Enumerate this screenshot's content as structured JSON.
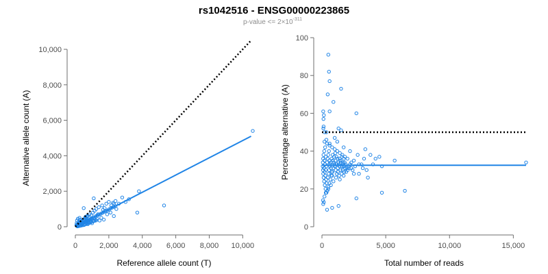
{
  "figure": {
    "title": "rs1042516 - ENSG00000223865",
    "subtitle": {
      "prefix": "p-value <= 2×10",
      "exponent": "-311"
    }
  },
  "colors": {
    "points": "#1f84e6",
    "fit_line": "#1f84e6",
    "reference_line": "#000000"
  },
  "chart_data": [
    {
      "id": "left",
      "type": "scatter",
      "xlabel": "Reference allele count (T)",
      "ylabel": "Alternative allele count (A)",
      "xlim": [
        0,
        10600
      ],
      "ylim": [
        0,
        10000
      ],
      "xticks": [
        0,
        2000,
        4000,
        6000,
        8000,
        10000
      ],
      "xtick_labels": [
        "0",
        "2,000",
        "4,000",
        "6,000",
        "8,000",
        "10,000"
      ],
      "yticks": [
        0,
        2000,
        4000,
        6000,
        8000,
        10000
      ],
      "ytick_labels": [
        "0",
        "2,000",
        "4,000",
        "6,000",
        "8,000",
        "10,000"
      ],
      "reference_line": {
        "style": "dotted",
        "from": [
          0,
          0
        ],
        "to": [
          10500,
          10500
        ]
      },
      "fit_line": {
        "from": [
          0,
          0
        ],
        "to": [
          10500,
          5100
        ]
      },
      "points": [
        [
          100,
          40
        ],
        [
          120,
          60
        ],
        [
          150,
          80
        ],
        [
          170,
          90
        ],
        [
          200,
          100
        ],
        [
          230,
          120
        ],
        [
          260,
          130
        ],
        [
          300,
          150
        ],
        [
          330,
          160
        ],
        [
          360,
          170
        ],
        [
          400,
          190
        ],
        [
          430,
          200
        ],
        [
          460,
          230
        ],
        [
          500,
          240
        ],
        [
          550,
          260
        ],
        [
          600,
          280
        ],
        [
          650,
          300
        ],
        [
          700,
          330
        ],
        [
          750,
          350
        ],
        [
          800,
          380
        ],
        [
          850,
          400
        ],
        [
          900,
          430
        ],
        [
          950,
          450
        ],
        [
          1000,
          480
        ],
        [
          1100,
          530
        ],
        [
          1200,
          580
        ],
        [
          1300,
          630
        ],
        [
          1400,
          680
        ],
        [
          1500,
          720
        ],
        [
          1600,
          770
        ],
        [
          1700,
          830
        ],
        [
          1800,
          870
        ],
        [
          1900,
          920
        ],
        [
          2000,
          970
        ],
        [
          2100,
          1030
        ],
        [
          2200,
          1080
        ],
        [
          2300,
          1120
        ],
        [
          2400,
          1160
        ],
        [
          80,
          200
        ],
        [
          100,
          350
        ],
        [
          150,
          450
        ],
        [
          200,
          250
        ],
        [
          250,
          500
        ],
        [
          300,
          400
        ],
        [
          350,
          300
        ],
        [
          420,
          150
        ],
        [
          500,
          420
        ],
        [
          520,
          100
        ],
        [
          600,
          550
        ],
        [
          650,
          200
        ],
        [
          700,
          600
        ],
        [
          750,
          150
        ],
        [
          800,
          250
        ],
        [
          850,
          700
        ],
        [
          900,
          300
        ],
        [
          950,
          650
        ],
        [
          1000,
          200
        ],
        [
          1050,
          800
        ],
        [
          1100,
          350
        ],
        [
          1150,
          900
        ],
        [
          1200,
          400
        ],
        [
          1250,
          1000
        ],
        [
          1300,
          450
        ],
        [
          1350,
          700
        ],
        [
          1400,
          1100
        ],
        [
          1450,
          350
        ],
        [
          1550,
          500
        ],
        [
          1600,
          1200
        ],
        [
          1650,
          950
        ],
        [
          1700,
          400
        ],
        [
          1750,
          1050
        ],
        [
          1850,
          1300
        ],
        [
          1900,
          700
        ],
        [
          2000,
          1400
        ],
        [
          2100,
          800
        ],
        [
          2150,
          1200
        ],
        [
          2250,
          1350
        ],
        [
          2300,
          600
        ],
        [
          2400,
          1450
        ],
        [
          2450,
          1000
        ],
        [
          2300,
          1300
        ],
        [
          500,
          1050
        ],
        [
          1100,
          1600
        ],
        [
          2800,
          1650
        ],
        [
          2600,
          1300
        ],
        [
          3000,
          1400
        ],
        [
          3200,
          1550
        ],
        [
          3800,
          2000
        ],
        [
          3700,
          800
        ],
        [
          5300,
          1200
        ],
        [
          10600,
          5400
        ],
        [
          120,
          20
        ],
        [
          180,
          30
        ],
        [
          260,
          50
        ],
        [
          320,
          60
        ],
        [
          380,
          80
        ],
        [
          450,
          90
        ],
        [
          550,
          120
        ],
        [
          620,
          140
        ],
        [
          700,
          170
        ],
        [
          780,
          200
        ],
        [
          870,
          230
        ],
        [
          950,
          260
        ],
        [
          1050,
          300
        ],
        [
          1150,
          330
        ],
        [
          1250,
          360
        ],
        [
          60,
          80
        ],
        [
          90,
          110
        ],
        [
          140,
          150
        ],
        [
          190,
          180
        ],
        [
          240,
          210
        ],
        [
          280,
          230
        ],
        [
          340,
          280
        ],
        [
          390,
          320
        ],
        [
          440,
          360
        ],
        [
          480,
          400
        ],
        [
          530,
          430
        ],
        [
          580,
          470
        ],
        [
          640,
          520
        ],
        [
          690,
          560
        ],
        [
          740,
          600
        ]
      ]
    },
    {
      "id": "right",
      "type": "scatter",
      "xlabel": "Total number of reads",
      "ylabel": "Percentage alternative (A)",
      "xlim": [
        0,
        16000
      ],
      "ylim": [
        0,
        100
      ],
      "xticks": [
        0,
        5000,
        10000,
        15000
      ],
      "xtick_labels": [
        "0",
        "5,000",
        "10,000",
        "15,000"
      ],
      "yticks": [
        0,
        20,
        40,
        60,
        80,
        100
      ],
      "ytick_labels": [
        "0",
        "20",
        "40",
        "60",
        "80",
        "100"
      ],
      "reference_line": {
        "style": "dotted",
        "from": [
          0,
          50
        ],
        "to": [
          16000,
          50
        ]
      },
      "fit_line": {
        "from": [
          0,
          32.5
        ],
        "to": [
          16000,
          32.5
        ]
      },
      "points": [
        [
          500,
          91
        ],
        [
          550,
          82
        ],
        [
          600,
          77
        ],
        [
          1500,
          73
        ],
        [
          450,
          70
        ],
        [
          2700,
          60
        ],
        [
          600,
          61
        ],
        [
          900,
          66
        ],
        [
          100,
          61
        ],
        [
          150,
          59
        ],
        [
          120,
          57
        ],
        [
          130,
          53
        ],
        [
          110,
          52
        ],
        [
          200,
          50
        ],
        [
          350,
          50
        ],
        [
          1300,
          52
        ],
        [
          1500,
          51
        ],
        [
          1000,
          47
        ],
        [
          200,
          45
        ],
        [
          350,
          46
        ],
        [
          600,
          44
        ],
        [
          1200,
          45
        ],
        [
          1700,
          42
        ],
        [
          2200,
          40
        ],
        [
          2800,
          38
        ],
        [
          3400,
          41
        ],
        [
          3800,
          38
        ],
        [
          4200,
          36
        ],
        [
          4500,
          37
        ],
        [
          4700,
          32
        ],
        [
          5700,
          35
        ],
        [
          3100,
          33
        ],
        [
          3500,
          30
        ],
        [
          2500,
          28
        ],
        [
          3600,
          26
        ],
        [
          2700,
          15
        ],
        [
          4700,
          18
        ],
        [
          6500,
          19
        ],
        [
          16000,
          34
        ],
        [
          800,
          10
        ],
        [
          400,
          9
        ],
        [
          1300,
          11
        ],
        [
          100,
          12
        ],
        [
          150,
          13
        ],
        [
          80,
          14
        ],
        [
          200,
          16
        ],
        [
          300,
          18
        ],
        [
          500,
          20
        ],
        [
          700,
          22
        ],
        [
          900,
          24
        ],
        [
          1100,
          26
        ],
        [
          1400,
          25
        ],
        [
          1700,
          27
        ],
        [
          1900,
          29
        ],
        [
          2100,
          31
        ],
        [
          2300,
          34
        ],
        [
          2500,
          35
        ],
        [
          2000,
          36
        ],
        [
          1800,
          37
        ],
        [
          1600,
          38
        ],
        [
          1400,
          39
        ],
        [
          1200,
          40
        ],
        [
          1000,
          41
        ],
        [
          800,
          42
        ],
        [
          600,
          43
        ],
        [
          400,
          44
        ],
        [
          250,
          42
        ],
        [
          180,
          40
        ],
        [
          120,
          38
        ],
        [
          90,
          36
        ],
        [
          70,
          34
        ],
        [
          60,
          32
        ],
        [
          80,
          30
        ],
        [
          100,
          28
        ],
        [
          130,
          26
        ],
        [
          170,
          24
        ],
        [
          220,
          22
        ],
        [
          280,
          20
        ],
        [
          350,
          18
        ],
        [
          420,
          19
        ],
        [
          500,
          21
        ],
        [
          580,
          23
        ],
        [
          660,
          25
        ],
        [
          740,
          27
        ],
        [
          820,
          29
        ],
        [
          900,
          31
        ],
        [
          980,
          33
        ],
        [
          1060,
          35
        ],
        [
          1140,
          37
        ],
        [
          1220,
          36
        ],
        [
          1300,
          34
        ],
        [
          1380,
          32
        ],
        [
          1460,
          30
        ],
        [
          1540,
          28
        ],
        [
          1620,
          30
        ],
        [
          1700,
          32
        ],
        [
          1780,
          34
        ],
        [
          1860,
          33
        ],
        [
          1940,
          31
        ],
        [
          2020,
          30
        ],
        [
          2100,
          32
        ],
        [
          2200,
          33
        ],
        [
          2300,
          31
        ],
        [
          2400,
          30
        ],
        [
          2600,
          32
        ],
        [
          2900,
          33
        ],
        [
          3200,
          31
        ],
        [
          300,
          30
        ],
        [
          350,
          32
        ],
        [
          400,
          34
        ],
        [
          450,
          36
        ],
        [
          500,
          38
        ],
        [
          550,
          40
        ],
        [
          600,
          35
        ],
        [
          650,
          33
        ],
        [
          700,
          31
        ],
        [
          750,
          29
        ],
        [
          800,
          27
        ],
        [
          850,
          35
        ],
        [
          950,
          37
        ],
        [
          1050,
          39
        ],
        [
          1150,
          33
        ],
        [
          1250,
          29
        ],
        [
          1350,
          27
        ],
        [
          1450,
          35
        ],
        [
          1550,
          37
        ],
        [
          1650,
          33
        ],
        [
          1750,
          29
        ],
        [
          2900,
          28
        ],
        [
          3300,
          36
        ],
        [
          4000,
          33
        ],
        [
          200,
          35
        ],
        [
          250,
          33
        ],
        [
          300,
          37
        ],
        [
          150,
          31
        ],
        [
          220,
          29
        ],
        [
          260,
          27
        ],
        [
          330,
          25
        ],
        [
          380,
          23
        ],
        [
          460,
          26
        ],
        [
          520,
          28
        ],
        [
          560,
          30
        ],
        [
          620,
          32
        ],
        [
          680,
          34
        ],
        [
          760,
          36
        ],
        [
          840,
          38
        ],
        [
          920,
          34
        ],
        [
          1000,
          32
        ],
        [
          1080,
          30
        ],
        [
          1160,
          28
        ],
        [
          1240,
          31
        ],
        [
          1320,
          33
        ],
        [
          1400,
          36
        ],
        [
          1480,
          34
        ],
        [
          1560,
          32
        ],
        [
          1640,
          34
        ],
        [
          1720,
          36
        ],
        [
          1800,
          31
        ]
      ]
    }
  ]
}
